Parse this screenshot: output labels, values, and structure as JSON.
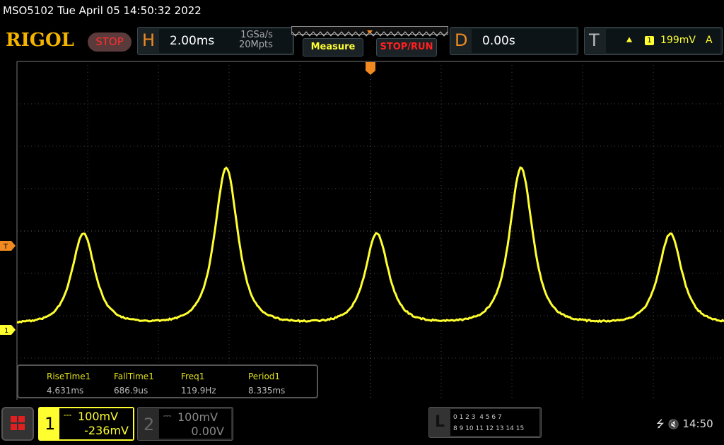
{
  "header": {
    "title": "MSO5102  Tue April 05 14:50:32 2022",
    "logo": "RIGOL",
    "run_state": "STOP"
  },
  "horizontal": {
    "label": "H",
    "timebase": "2.00ms",
    "sample_rate": "1GSa/s",
    "memory_depth": "20Mpts"
  },
  "buttons": {
    "measure": "Measure",
    "stop_run": "STOP/RUN"
  },
  "delay": {
    "label": "D",
    "value": "0.00s"
  },
  "trigger": {
    "label": "T",
    "edge_icon": "rising-edge-icon",
    "edge_glyph": "⯅",
    "source": "1",
    "level": "199mV",
    "mode": "A",
    "marker": "T"
  },
  "measurements": [
    {
      "name": "RiseTime1",
      "value": "4.631ms"
    },
    {
      "name": "FallTime1",
      "value": "686.9us"
    },
    {
      "name": "Freq1",
      "value": "119.9Hz"
    },
    {
      "name": "Period1",
      "value": "8.335ms"
    }
  ],
  "channels": [
    {
      "num": "1",
      "scale": "100mV",
      "offset": "-236mV",
      "coupling_glyph": "⎓",
      "active": true,
      "color": "#ffff30"
    },
    {
      "num": "2",
      "scale": "100mV",
      "offset": "0.00V",
      "coupling_glyph": "⎓",
      "active": false,
      "color": "#888888"
    }
  ],
  "logic": {
    "label": "L",
    "row1": "0 1 2 3  4 5 6 7",
    "row2": "8 9 10 11 12 13 14 15"
  },
  "status": {
    "usb_icon": "usb-icon",
    "usb_glyph": "⭍",
    "mute_icon": "speaker-muted-icon",
    "mute_glyph": "🔇",
    "clock": "14:50"
  },
  "colors": {
    "trace": "#ffff30",
    "accent": "#f08a20",
    "grid": "#555555"
  }
}
